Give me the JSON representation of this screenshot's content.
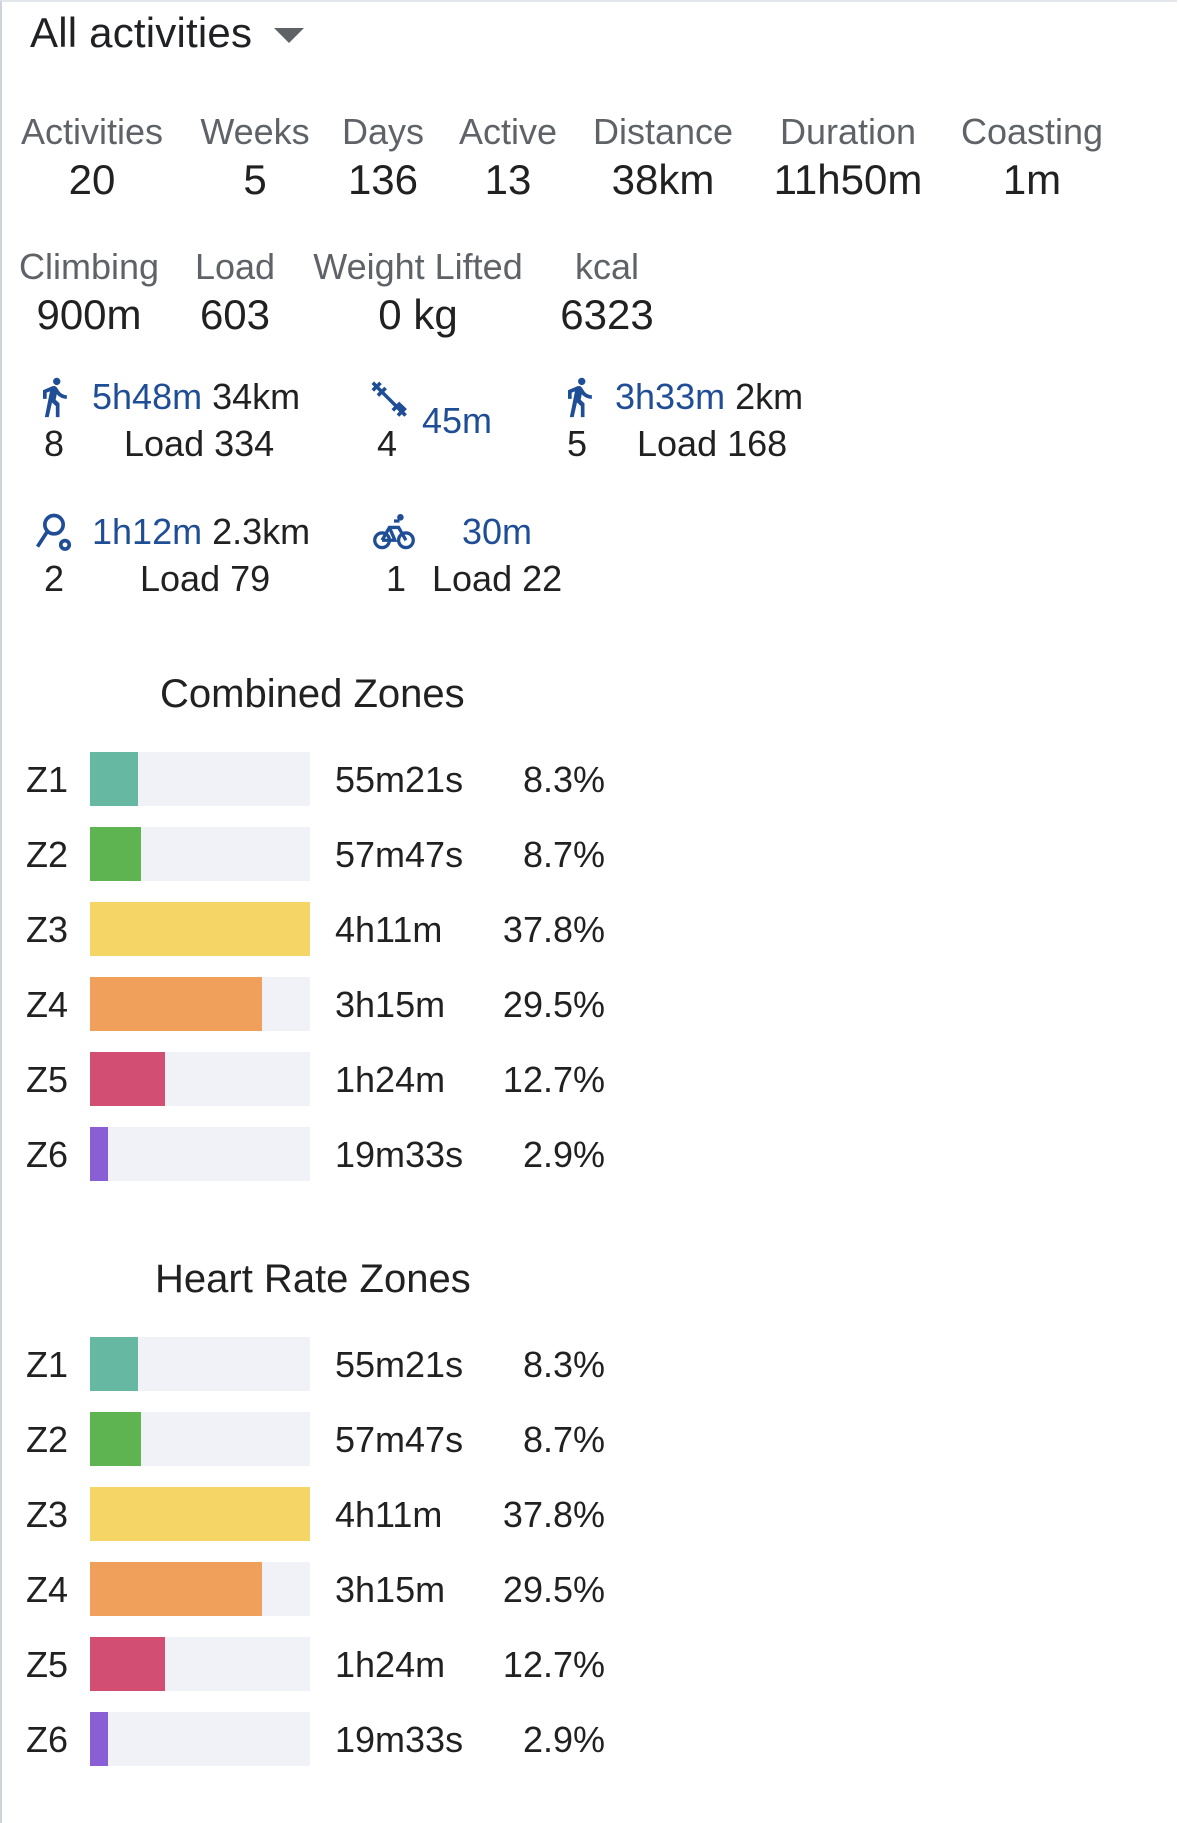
{
  "header": {
    "title": "All activities"
  },
  "stats_row1": [
    {
      "label": "Activities",
      "value": "20"
    },
    {
      "label": "Weeks",
      "value": "5"
    },
    {
      "label": "Days",
      "value": "136"
    },
    {
      "label": "Active",
      "value": "13"
    },
    {
      "label": "Distance",
      "value": "38km"
    },
    {
      "label": "Duration",
      "value": "11h50m"
    },
    {
      "label": "Coasting",
      "value": "1m"
    }
  ],
  "stats_row2": [
    {
      "label": "Climbing",
      "value": "900m"
    },
    {
      "label": "Load",
      "value": "603"
    },
    {
      "label": "Weight Lifted",
      "value": "0 kg"
    },
    {
      "label": "kcal",
      "value": "6323"
    }
  ],
  "sports": [
    {
      "icon": "run-icon",
      "duration": "5h48m",
      "distance": "34km",
      "count": "8",
      "load": "Load 334"
    },
    {
      "icon": "weight-training-icon",
      "duration": "45m",
      "distance": "",
      "count": "4",
      "load": ""
    },
    {
      "icon": "walk-icon",
      "duration": "3h33m",
      "distance": "2km",
      "count": "5",
      "load": "Load 168"
    },
    {
      "icon": "route-icon",
      "duration": "1h12m",
      "distance": "2.3km",
      "count": "2",
      "load": "Load 79"
    },
    {
      "icon": "bike-icon",
      "duration": "30m",
      "distance": "",
      "count": "1",
      "load": "Load 22"
    }
  ],
  "colors": {
    "Z1": "#66b8a3",
    "Z2": "#5db451",
    "Z3": "#f5d565",
    "Z4": "#f0a05a",
    "Z5": "#d24e72",
    "Z6": "#8a5fd6",
    "accent_blue": "#1f4e96"
  },
  "combined_zones": {
    "title": "Combined Zones",
    "zones": [
      {
        "zone": "Z1",
        "time": "55m21s",
        "percent": "8.3%",
        "fill_fraction": 0.22
      },
      {
        "zone": "Z2",
        "time": "57m47s",
        "percent": "8.7%",
        "fill_fraction": 0.23
      },
      {
        "zone": "Z3",
        "time": "4h11m",
        "percent": "37.8%",
        "fill_fraction": 1.0
      },
      {
        "zone": "Z4",
        "time": "3h15m",
        "percent": "29.5%",
        "fill_fraction": 0.78
      },
      {
        "zone": "Z5",
        "time": "1h24m",
        "percent": "12.7%",
        "fill_fraction": 0.34
      },
      {
        "zone": "Z6",
        "time": "19m33s",
        "percent": "2.9%",
        "fill_fraction": 0.08
      }
    ]
  },
  "hr_zones": {
    "title": "Heart Rate Zones",
    "zones": [
      {
        "zone": "Z1",
        "time": "55m21s",
        "percent": "8.3%",
        "fill_fraction": 0.22
      },
      {
        "zone": "Z2",
        "time": "57m47s",
        "percent": "8.7%",
        "fill_fraction": 0.23
      },
      {
        "zone": "Z3",
        "time": "4h11m",
        "percent": "37.8%",
        "fill_fraction": 1.0
      },
      {
        "zone": "Z4",
        "time": "3h15m",
        "percent": "29.5%",
        "fill_fraction": 0.78
      },
      {
        "zone": "Z5",
        "time": "1h24m",
        "percent": "12.7%",
        "fill_fraction": 0.34
      },
      {
        "zone": "Z6",
        "time": "19m33s",
        "percent": "2.9%",
        "fill_fraction": 0.08
      }
    ]
  }
}
